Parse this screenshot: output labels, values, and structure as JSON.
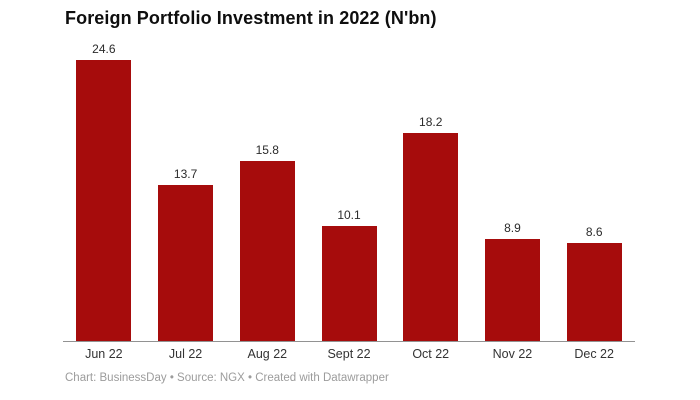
{
  "header": {
    "title": "Foreign Portfolio Investment in 2022 (N'bn)"
  },
  "chart_data": {
    "type": "bar",
    "title": "Foreign Portfolio Investment in 2022 (N'bn)",
    "categories": [
      "Jun 22",
      "Jul 22",
      "Aug 22",
      "Sept 22",
      "Oct 22",
      "Nov 22",
      "Dec 22"
    ],
    "values": [
      24.6,
      13.7,
      15.8,
      10.1,
      18.2,
      8.9,
      8.6
    ],
    "value_labels": [
      "24.6",
      "13.7",
      "15.8",
      "10.1",
      "18.2",
      "8.9",
      "8.6"
    ],
    "xlabel": "",
    "ylabel": "",
    "ylim": [
      0,
      24.6
    ],
    "grid": false,
    "legend": "none",
    "data_labels_position": "above-bars",
    "bar_color": "#a60c0c",
    "axis_line_color": "#929292",
    "value_label_color": "#2b2b2b",
    "tick_label_color": "#333333"
  },
  "footer": {
    "attribution": "Chart: BusinessDay • Source: NGX • Created with Datawrapper"
  },
  "colors": {
    "background": "#ffffff",
    "title_text": "#0e0e0e",
    "bar": "#a60c0c",
    "footer_text": "#9c9c9c"
  }
}
